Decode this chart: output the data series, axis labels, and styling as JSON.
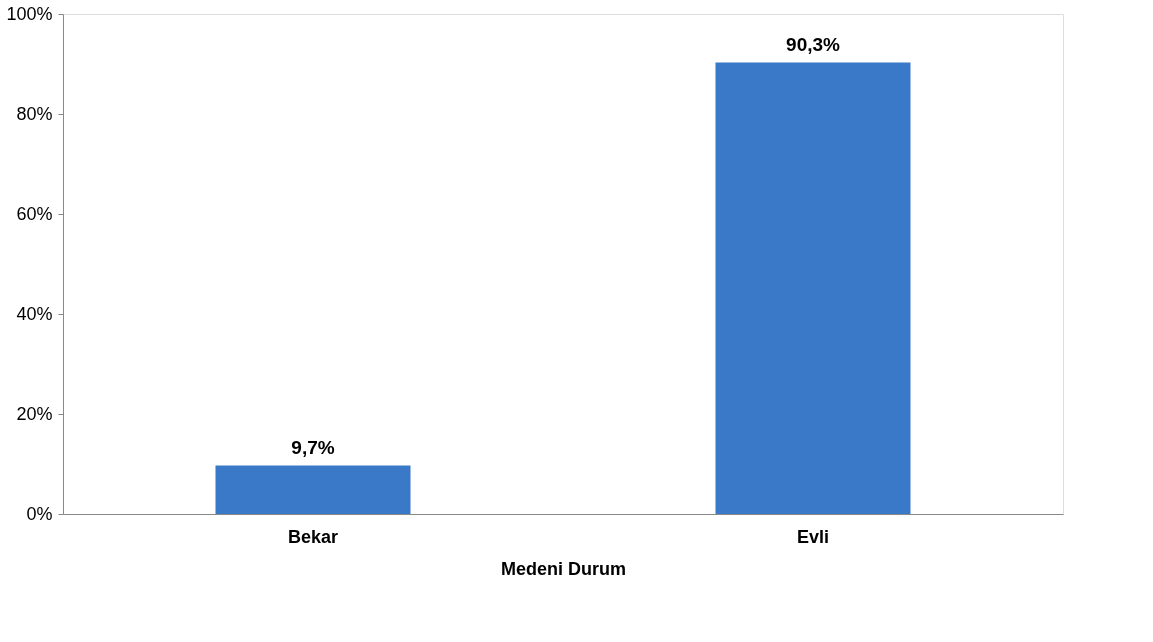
{
  "chart_data": {
    "type": "bar",
    "xlabel": "Medeni Durum",
    "categories": [
      "Bekar",
      "Evli"
    ],
    "values": [
      9.7,
      90.3
    ],
    "value_labels": [
      "9,7%",
      "90,3%"
    ],
    "color": "#3a78c8",
    "ylim": [
      0,
      100
    ],
    "yticks": [
      {
        "value": 0,
        "label": "0%"
      },
      {
        "value": 20,
        "label": "20%"
      },
      {
        "value": 40,
        "label": "40%"
      },
      {
        "value": 60,
        "label": "60%"
      },
      {
        "value": 80,
        "label": "80%"
      },
      {
        "value": 100,
        "label": "100%"
      }
    ],
    "grid": false
  }
}
